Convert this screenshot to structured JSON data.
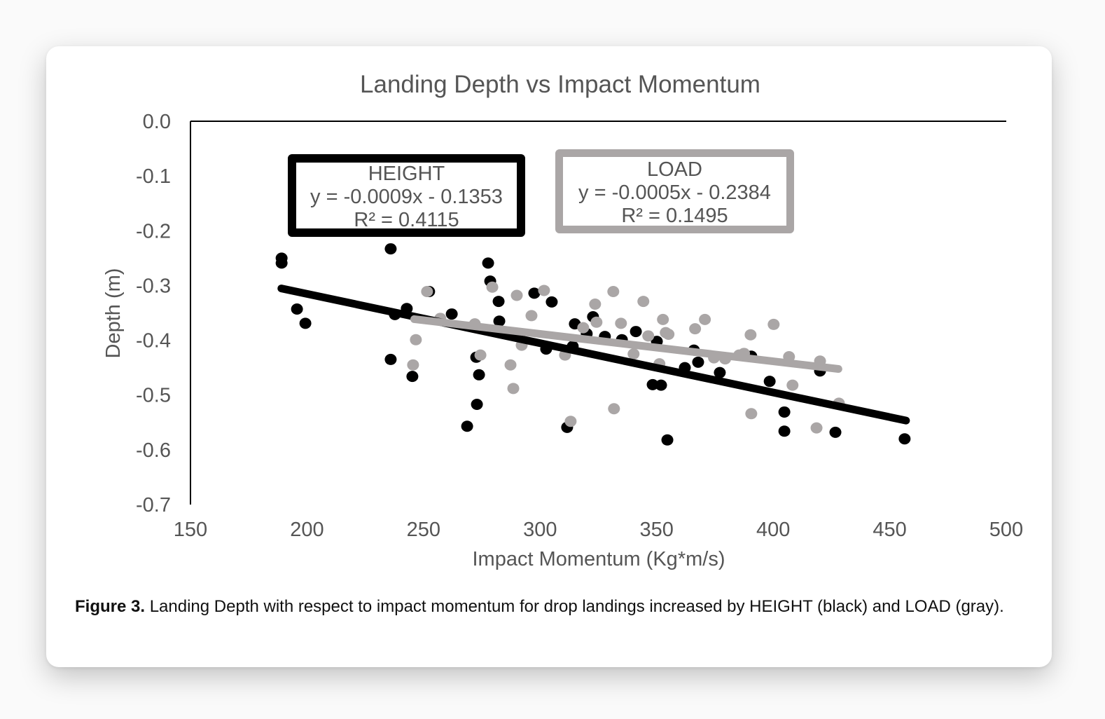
{
  "chart_data": {
    "type": "scatter",
    "title": "Landing Depth vs Impact Momentum",
    "xlabel": "Impact Momentum (Kg*m/s)",
    "ylabel": "Depth (m)",
    "xlim": [
      150,
      500
    ],
    "ylim": [
      -0.7,
      0.0
    ],
    "xticks": [
      "150",
      "200",
      "250",
      "300",
      "350",
      "400",
      "450",
      "500"
    ],
    "yticks": [
      "0.0",
      "-0.1",
      "-0.2",
      "-0.3",
      "-0.4",
      "-0.5",
      "-0.6",
      "-0.7"
    ],
    "grid": false,
    "series": [
      {
        "name": "HEIGHT",
        "color": "#000000",
        "equation": "y = -0.0009x - 0.1353",
        "r2": "R² = 0.4115",
        "trendline": {
          "slope": -0.0009,
          "intercept": -0.1353,
          "x_range": [
            189,
            457
          ]
        },
        "points": [
          [
            189.1,
            -0.25
          ],
          [
            189.1,
            -0.259
          ],
          [
            195.7,
            -0.343
          ],
          [
            199.3,
            -0.369
          ],
          [
            235.9,
            -0.233
          ],
          [
            235.9,
            -0.435
          ],
          [
            237.7,
            -0.353
          ],
          [
            242.8,
            -0.342
          ],
          [
            245.2,
            -0.466
          ],
          [
            252.4,
            -0.311
          ],
          [
            262.1,
            -0.352
          ],
          [
            268.7,
            -0.557
          ],
          [
            272.6,
            -0.431
          ],
          [
            272.9,
            -0.517
          ],
          [
            273.8,
            -0.463
          ],
          [
            277.7,
            -0.259
          ],
          [
            278.6,
            -0.292
          ],
          [
            282.2,
            -0.329
          ],
          [
            282.5,
            -0.365
          ],
          [
            297.5,
            -0.314
          ],
          [
            305.0,
            -0.33
          ],
          [
            302.6,
            -0.416
          ],
          [
            311.6,
            -0.559
          ],
          [
            314.9,
            -0.37
          ],
          [
            314.0,
            -0.411
          ],
          [
            320.0,
            -0.388
          ],
          [
            322.7,
            -0.357
          ],
          [
            327.8,
            -0.393
          ],
          [
            335.1,
            -0.399
          ],
          [
            341.1,
            -0.384
          ],
          [
            350.1,
            -0.402
          ],
          [
            348.3,
            -0.481
          ],
          [
            351.9,
            -0.482
          ],
          [
            354.6,
            -0.582
          ],
          [
            362.1,
            -0.45
          ],
          [
            366.0,
            -0.418
          ],
          [
            367.8,
            -0.44
          ],
          [
            377.1,
            -0.459
          ],
          [
            390.6,
            -0.429
          ],
          [
            398.5,
            -0.475
          ],
          [
            404.8,
            -0.531
          ],
          [
            404.8,
            -0.566
          ],
          [
            420.1,
            -0.456
          ],
          [
            426.7,
            -0.568
          ],
          [
            456.4,
            -0.58
          ]
        ]
      },
      {
        "name": "LOAD",
        "color": "#aaa6a6",
        "equation": "y = -0.0005x - 0.2384",
        "r2": "R² = 0.1495",
        "trendline": {
          "slope": -0.0005,
          "intercept": -0.2384,
          "x_range": [
            246,
            428
          ]
        },
        "points": [
          [
            245.5,
            -0.445
          ],
          [
            246.7,
            -0.399
          ],
          [
            251.5,
            -0.311
          ],
          [
            257.2,
            -0.36
          ],
          [
            272.0,
            -0.37
          ],
          [
            274.4,
            -0.427
          ],
          [
            279.5,
            -0.303
          ],
          [
            287.3,
            -0.445
          ],
          [
            288.5,
            -0.488
          ],
          [
            290.0,
            -0.318
          ],
          [
            292.1,
            -0.409
          ],
          [
            296.3,
            -0.355
          ],
          [
            301.7,
            -0.309
          ],
          [
            310.7,
            -0.427
          ],
          [
            313.1,
            -0.548
          ],
          [
            318.5,
            -0.377
          ],
          [
            323.6,
            -0.334
          ],
          [
            324.2,
            -0.367
          ],
          [
            331.4,
            -0.311
          ],
          [
            331.7,
            -0.525
          ],
          [
            334.7,
            -0.369
          ],
          [
            340.1,
            -0.425
          ],
          [
            344.3,
            -0.329
          ],
          [
            346.4,
            -0.392
          ],
          [
            351.2,
            -0.443
          ],
          [
            352.7,
            -0.362
          ],
          [
            353.9,
            -0.386
          ],
          [
            355.1,
            -0.389
          ],
          [
            366.5,
            -0.379
          ],
          [
            370.7,
            -0.362
          ],
          [
            374.6,
            -0.432
          ],
          [
            379.4,
            -0.434
          ],
          [
            385.4,
            -0.427
          ],
          [
            387.5,
            -0.424
          ],
          [
            390.3,
            -0.39
          ],
          [
            390.6,
            -0.534
          ],
          [
            400.2,
            -0.371
          ],
          [
            406.8,
            -0.43
          ],
          [
            408.3,
            -0.482
          ],
          [
            418.6,
            -0.56
          ],
          [
            420.1,
            -0.438
          ],
          [
            428.2,
            -0.515
          ]
        ]
      }
    ]
  },
  "legend_boxes": {
    "height": {
      "label": "HEIGHT",
      "equation": "y = -0.0009x - 0.1353",
      "r2": "R² = 0.4115"
    },
    "load": {
      "label": "LOAD",
      "equation": "y = -0.0005x - 0.2384",
      "r2": "R² = 0.1495"
    }
  },
  "caption": {
    "label": "Figure 3.",
    "text": " Landing Depth with respect to impact momentum for drop landings increased by HEIGHT (black) and LOAD (gray)."
  }
}
